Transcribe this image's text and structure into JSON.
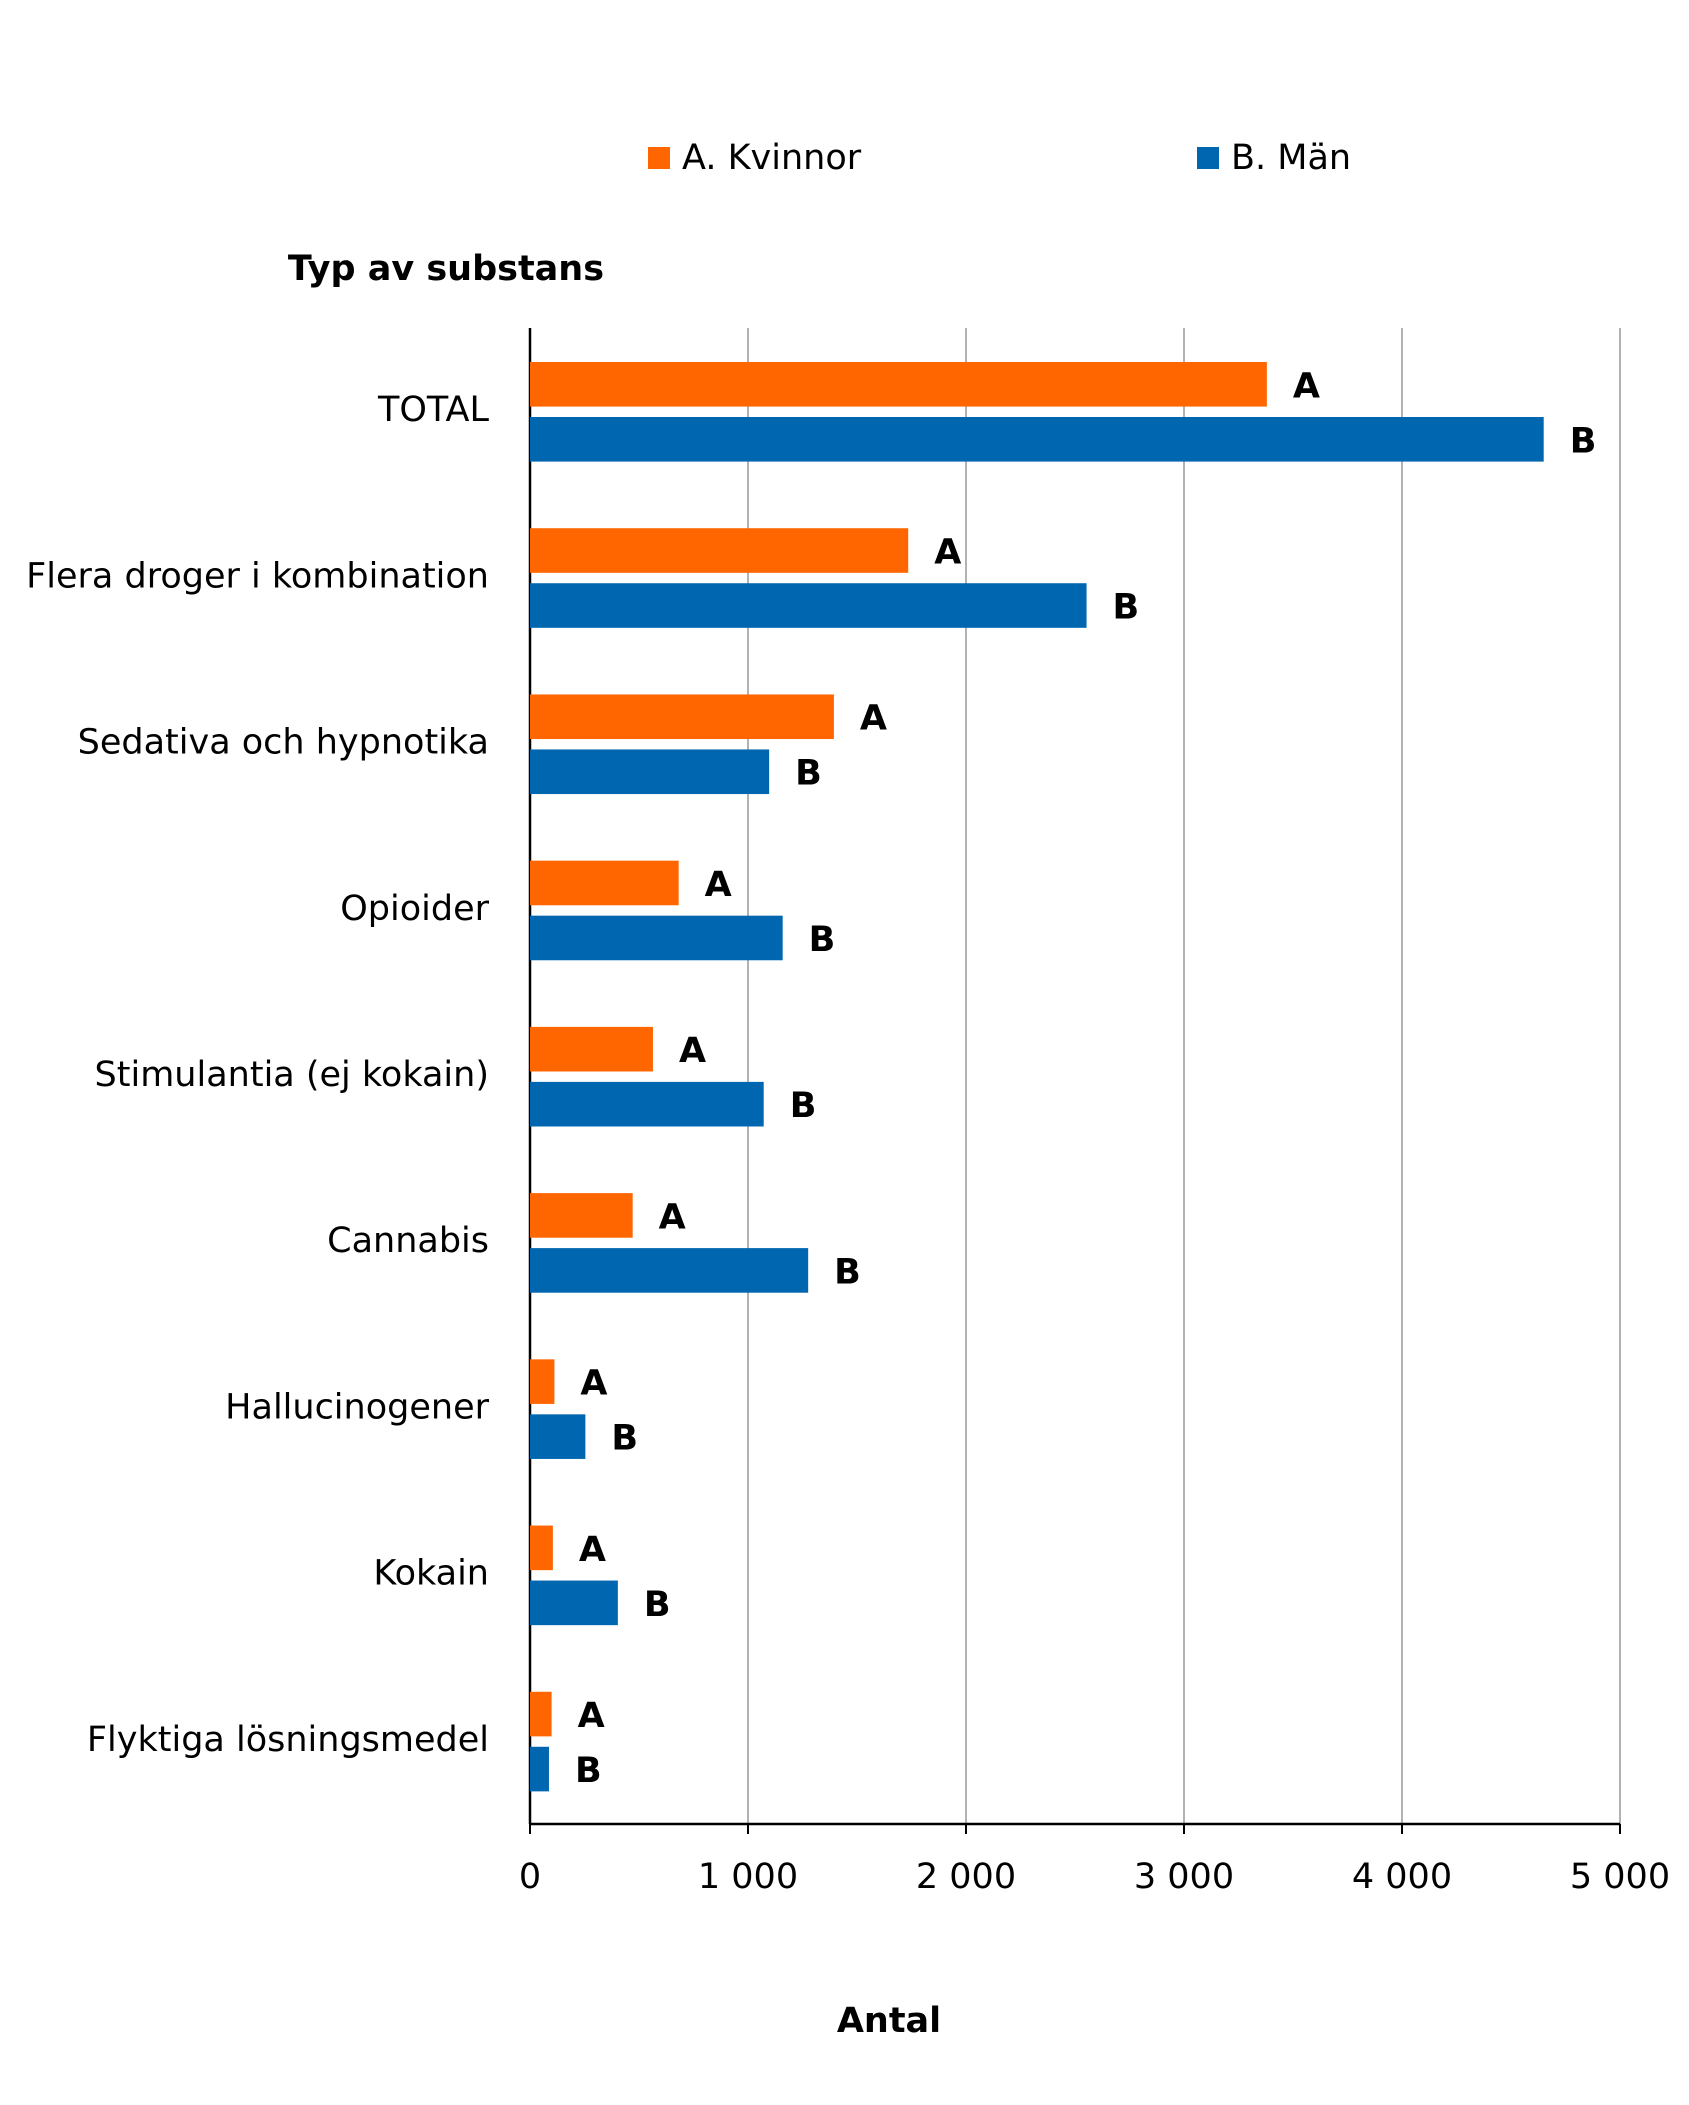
{
  "chart_data": {
    "type": "barh",
    "legend_position": "top",
    "y_axis_label": "Typ av substans",
    "x_axis_label": "Antal",
    "categories": [
      "TOTAL",
      "Flera droger i kombination",
      "Sedativa och hypnotika",
      "Opioider",
      "Stimulantia (ej kokain)",
      "Cannabis",
      "Hallucinogener",
      "Kokain",
      "Flyktiga lösningsmedel"
    ],
    "series": [
      {
        "name": "A. Kvinnor",
        "bar_label": "A",
        "color": "#ff6600",
        "values": [
          3380,
          1735,
          1394,
          682,
          564,
          471,
          112,
          105,
          99
        ]
      },
      {
        "name": "B. Män",
        "bar_label": "B",
        "color": "#0066b0",
        "values": [
          4650,
          2553,
          1097,
          1159,
          1072,
          1276,
          254,
          403,
          87
        ]
      }
    ],
    "xlim": [
      0,
      5000
    ],
    "xticks": [
      0,
      {
        "value": 1000,
        "label": "1 000"
      },
      {
        "value": 2000,
        "label": "2 000"
      },
      {
        "value": 3000,
        "label": "3 000"
      },
      {
        "value": 4000,
        "label": "4 000"
      },
      {
        "value": 5000,
        "label": "5 000"
      }
    ],
    "grid": true
  }
}
